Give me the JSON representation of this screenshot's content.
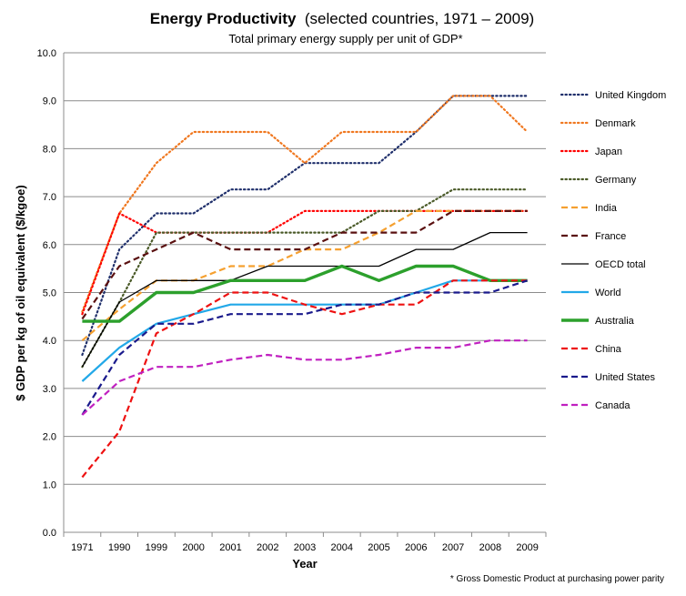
{
  "chart_data": {
    "type": "line",
    "title": "Energy Productivity",
    "title_suffix": "(selected countries, 1971 – 2009)",
    "subtitle": "Total primary energy supply per unit of GDP*",
    "xlabel": "Year",
    "ylabel": "$ GDP per kg of oil equivalent ($/kgoe)",
    "footnote": "* Gross Domestic Product at purchasing power parity",
    "categories": [
      "1971",
      "1990",
      "1999",
      "2000",
      "2001",
      "2002",
      "2003",
      "2004",
      "2005",
      "2006",
      "2007",
      "2008",
      "2009"
    ],
    "ylim": [
      0,
      10
    ],
    "y_ticks": [
      "0.0",
      "1.0",
      "2.0",
      "3.0",
      "4.0",
      "5.0",
      "6.0",
      "7.0",
      "8.0",
      "9.0",
      "10.0"
    ],
    "grid": "horizontal",
    "legend_position": "right",
    "series": [
      {
        "name": "United Kingdom",
        "color": "#1f2f6b",
        "dash": "dotted",
        "width": 2.2,
        "values": [
          3.7,
          5.9,
          6.65,
          6.65,
          7.15,
          7.15,
          7.7,
          7.7,
          7.7,
          8.35,
          9.1,
          9.1,
          9.1
        ]
      },
      {
        "name": "Denmark",
        "color": "#f07820",
        "dash": "dotted",
        "width": 2.2,
        "values": [
          4.6,
          6.65,
          7.7,
          8.35,
          8.35,
          8.35,
          7.7,
          8.35,
          8.35,
          8.35,
          9.1,
          9.1,
          8.35
        ]
      },
      {
        "name": "Japan",
        "color": "#ff0000",
        "dash": "dotted",
        "width": 2.2,
        "values": [
          4.55,
          6.65,
          6.25,
          6.25,
          6.25,
          6.25,
          6.7,
          6.7,
          6.7,
          6.7,
          6.7,
          6.7,
          6.7
        ]
      },
      {
        "name": "Germany",
        "color": "#4a5a28",
        "dash": "dotted",
        "width": 2.2,
        "values": [
          3.45,
          4.8,
          6.25,
          6.25,
          6.25,
          6.25,
          6.25,
          6.25,
          6.7,
          6.7,
          7.15,
          7.15,
          7.15
        ]
      },
      {
        "name": "India",
        "color": "#f5a030",
        "dash": "dashed",
        "width": 2.2,
        "values": [
          4.0,
          4.65,
          5.25,
          5.25,
          5.55,
          5.55,
          5.9,
          5.9,
          6.25,
          6.7,
          6.7,
          6.7,
          6.7
        ]
      },
      {
        "name": "France",
        "color": "#5a1010",
        "dash": "dashed",
        "width": 2.2,
        "values": [
          4.45,
          5.55,
          5.9,
          6.25,
          5.9,
          5.9,
          5.9,
          6.25,
          6.25,
          6.25,
          6.7,
          6.7,
          6.7
        ]
      },
      {
        "name": "OECD total",
        "color": "#000000",
        "dash": "solid",
        "width": 1.3,
        "values": [
          3.45,
          4.8,
          5.25,
          5.25,
          5.25,
          5.55,
          5.55,
          5.55,
          5.55,
          5.9,
          5.9,
          6.25,
          6.25
        ]
      },
      {
        "name": "World",
        "color": "#22a8e8",
        "dash": "solid",
        "width": 2.2,
        "values": [
          3.15,
          3.85,
          4.35,
          4.55,
          4.75,
          4.75,
          4.75,
          4.75,
          4.75,
          5.0,
          5.25,
          5.25,
          5.25
        ]
      },
      {
        "name": "Australia",
        "color": "#2ca02c",
        "dash": "solid",
        "width": 3.4,
        "values": [
          4.4,
          4.4,
          5.0,
          5.0,
          5.25,
          5.25,
          5.25,
          5.55,
          5.25,
          5.55,
          5.55,
          5.25,
          5.25
        ]
      },
      {
        "name": "China",
        "color": "#ee1111",
        "dash": "dashed",
        "width": 2.2,
        "values": [
          1.15,
          2.1,
          4.15,
          4.55,
          5.0,
          5.0,
          4.75,
          4.55,
          4.75,
          4.75,
          5.25,
          5.25,
          5.25
        ]
      },
      {
        "name": "United States",
        "color": "#1a1a8c",
        "dash": "dashed",
        "width": 2.2,
        "values": [
          2.45,
          3.7,
          4.35,
          4.35,
          4.55,
          4.55,
          4.55,
          4.75,
          4.75,
          5.0,
          5.0,
          5.0,
          5.25
        ]
      },
      {
        "name": "Canada",
        "color": "#c020c0",
        "dash": "dashed",
        "width": 2.2,
        "values": [
          2.45,
          3.15,
          3.45,
          3.45,
          3.6,
          3.7,
          3.6,
          3.6,
          3.7,
          3.85,
          3.85,
          4.0,
          4.0
        ]
      }
    ]
  }
}
